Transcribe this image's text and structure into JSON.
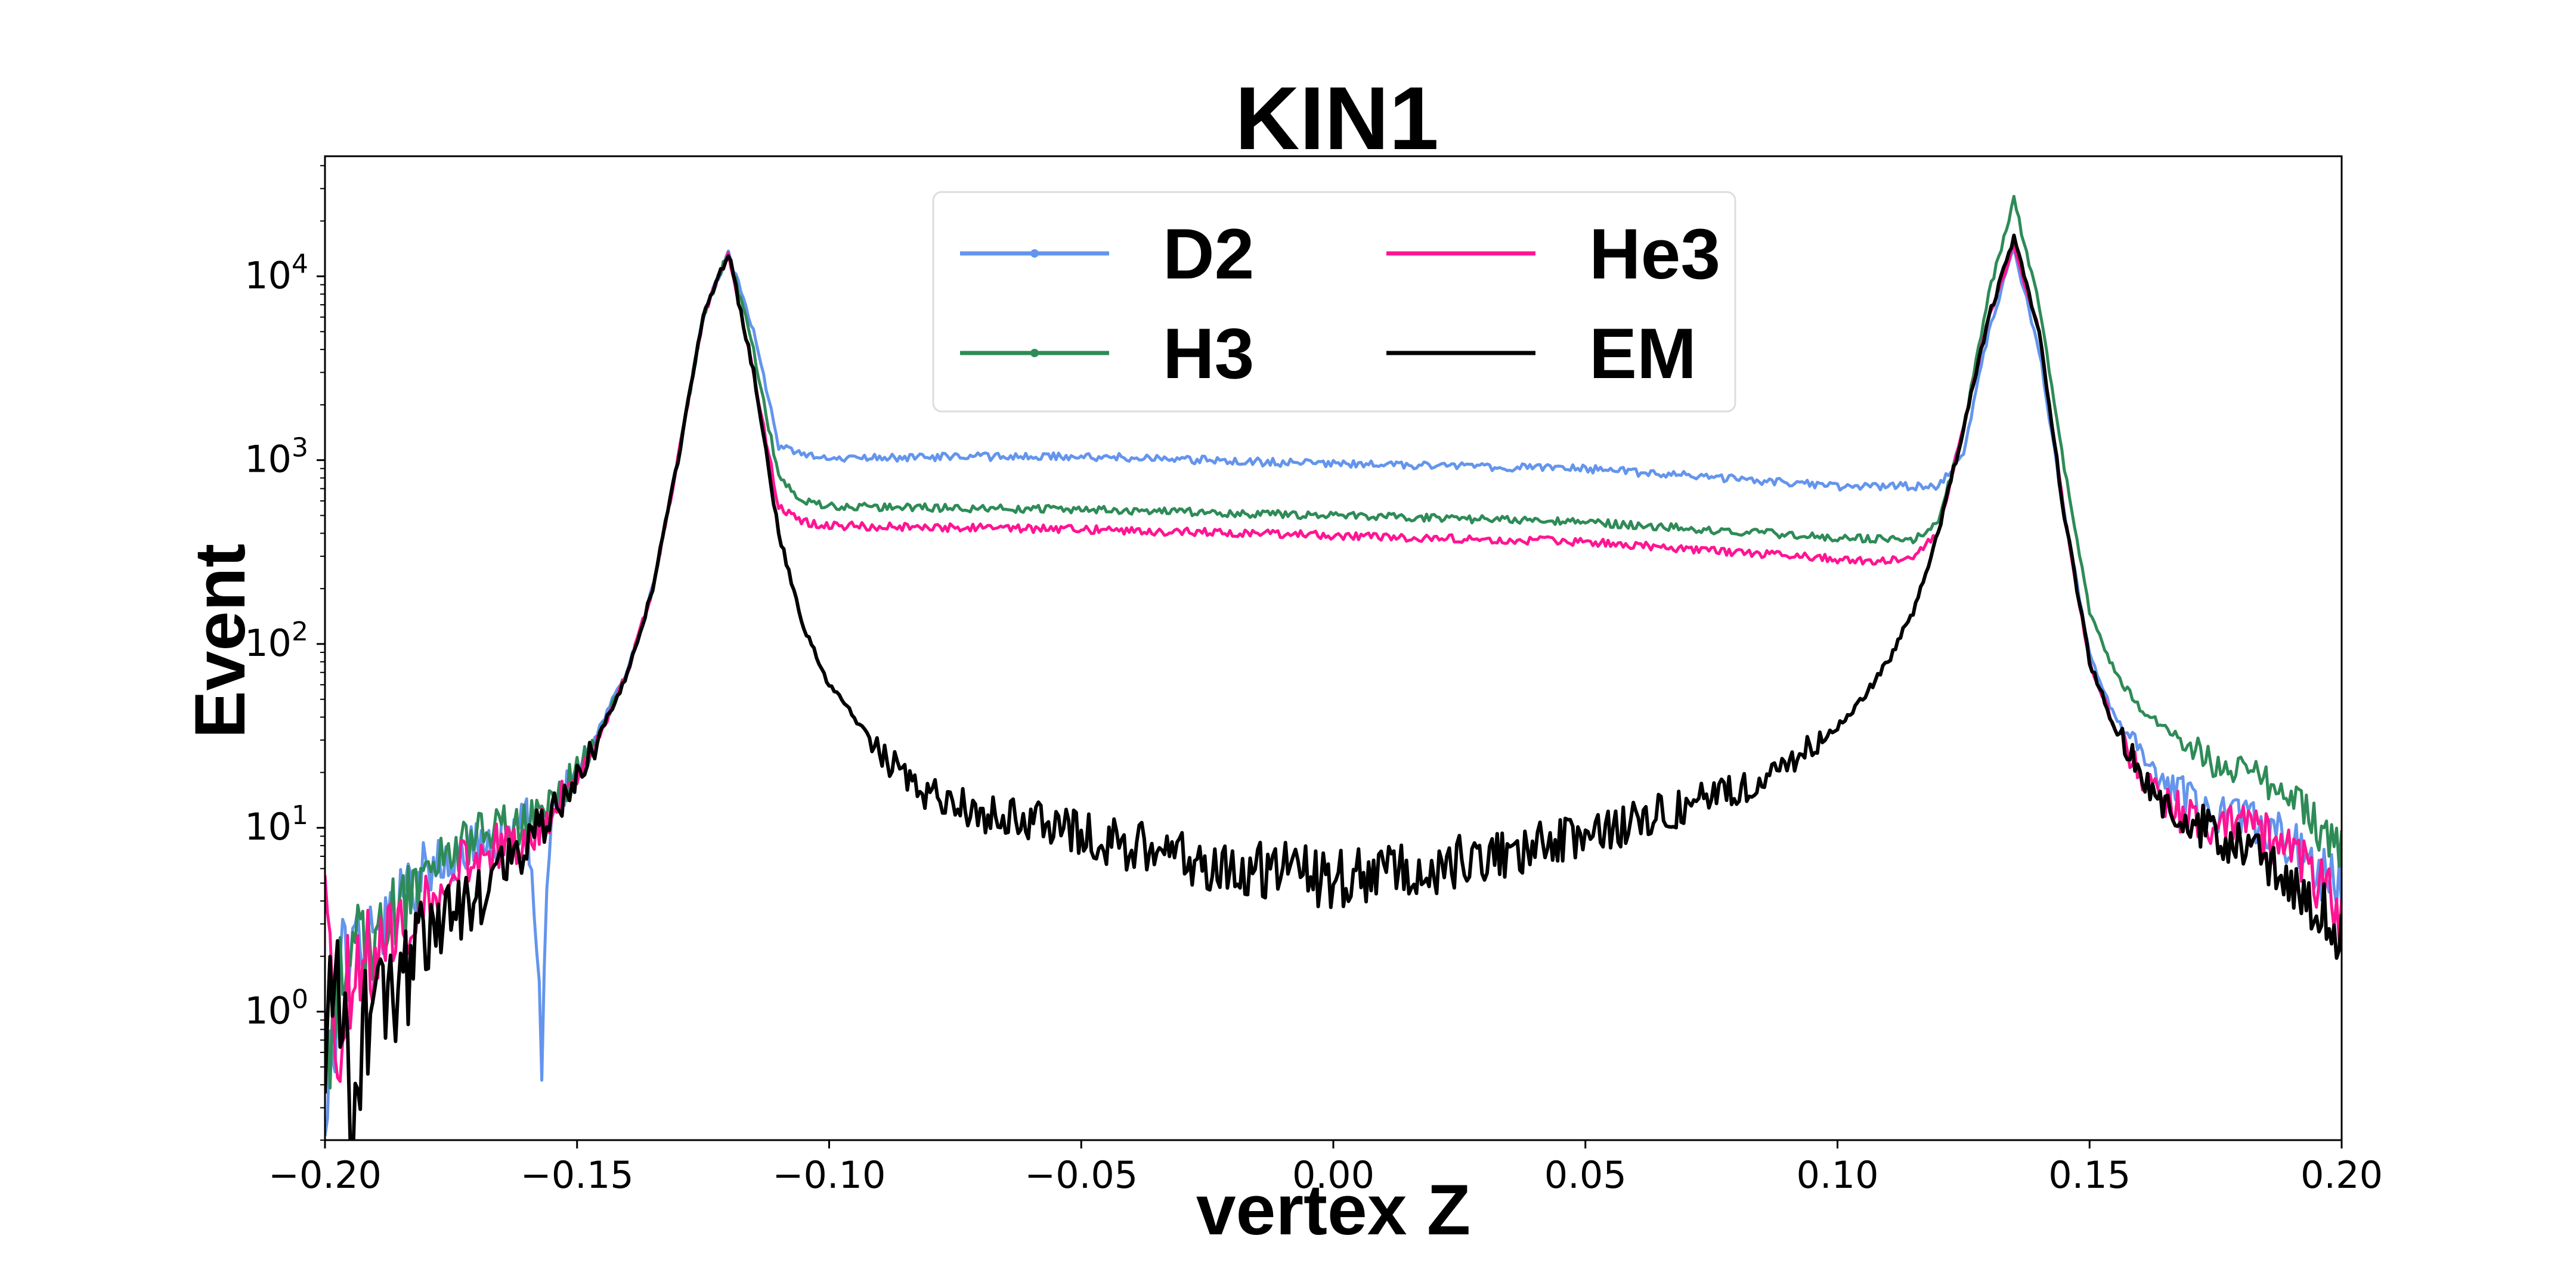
{
  "chart_data": {
    "type": "line",
    "title": "KIN1",
    "xlabel": "vertex Z",
    "ylabel": "Event",
    "xlim": [
      -0.2,
      0.2
    ],
    "ylim": [
      0.2,
      45000
    ],
    "yscale": "log",
    "grid": false,
    "legend": {
      "placement": "top-center",
      "columns": 2
    },
    "xticks": [
      -0.2,
      -0.15,
      -0.1,
      -0.05,
      0.0,
      0.05,
      0.1,
      0.15,
      0.2
    ],
    "xtick_labels": [
      "−0.20",
      "−0.15",
      "−0.10",
      "−0.05",
      "0.00",
      "0.05",
      "0.10",
      "0.15",
      "0.20"
    ],
    "yticks": [
      1,
      10,
      100,
      1000,
      10000
    ],
    "ytick_labels": [
      {
        "base": "10",
        "exp": "0"
      },
      {
        "base": "10",
        "exp": "1"
      },
      {
        "base": "10",
        "exp": "2"
      },
      {
        "base": "10",
        "exp": "3"
      },
      {
        "base": "10",
        "exp": "4"
      }
    ],
    "series": [
      {
        "name": "D2",
        "color": "#6495ed",
        "marker": "dot",
        "points": [
          [
            -0.2,
            0.5
          ],
          [
            -0.195,
            2.5
          ],
          [
            -0.19,
            2.8
          ],
          [
            -0.185,
            4
          ],
          [
            -0.18,
            6
          ],
          [
            -0.175,
            7
          ],
          [
            -0.17,
            8
          ],
          [
            -0.165,
            9
          ],
          [
            -0.16,
            11
          ],
          [
            -0.157,
            1.0
          ],
          [
            -0.155,
            13
          ],
          [
            -0.15,
            20
          ],
          [
            -0.145,
            38
          ],
          [
            -0.14,
            70
          ],
          [
            -0.135,
            200
          ],
          [
            -0.13,
            1000
          ],
          [
            -0.125,
            6000
          ],
          [
            -0.12,
            13500
          ],
          [
            -0.115,
            5000
          ],
          [
            -0.11,
            1200
          ],
          [
            -0.105,
            1050
          ],
          [
            -0.1,
            1030
          ],
          [
            -0.05,
            1050
          ],
          [
            0.0,
            950
          ],
          [
            0.05,
            900
          ],
          [
            0.1,
            720
          ],
          [
            0.12,
            720
          ],
          [
            0.125,
            1100
          ],
          [
            0.13,
            5000
          ],
          [
            0.135,
            14000
          ],
          [
            0.14,
            4000
          ],
          [
            0.145,
            500
          ],
          [
            0.15,
            90
          ],
          [
            0.155,
            40
          ],
          [
            0.16,
            25
          ],
          [
            0.165,
            18
          ],
          [
            0.17,
            14
          ],
          [
            0.175,
            12
          ],
          [
            0.18,
            11
          ],
          [
            0.185,
            10
          ],
          [
            0.19,
            8
          ],
          [
            0.195,
            6
          ],
          [
            0.2,
            5
          ]
        ]
      },
      {
        "name": "H3",
        "color": "#2e8b57",
        "marker": "dot",
        "points": [
          [
            -0.2,
            0.6
          ],
          [
            -0.195,
            2
          ],
          [
            -0.19,
            2.5
          ],
          [
            -0.185,
            4
          ],
          [
            -0.18,
            5
          ],
          [
            -0.175,
            7
          ],
          [
            -0.17,
            9
          ],
          [
            -0.165,
            10
          ],
          [
            -0.16,
            11
          ],
          [
            -0.155,
            14
          ],
          [
            -0.15,
            20
          ],
          [
            -0.145,
            35
          ],
          [
            -0.14,
            70
          ],
          [
            -0.135,
            200
          ],
          [
            -0.13,
            1000
          ],
          [
            -0.125,
            6000
          ],
          [
            -0.12,
            13500
          ],
          [
            -0.115,
            4000
          ],
          [
            -0.11,
            800
          ],
          [
            -0.105,
            600
          ],
          [
            -0.1,
            560
          ],
          [
            -0.05,
            540
          ],
          [
            0.0,
            500
          ],
          [
            0.05,
            460
          ],
          [
            0.1,
            380
          ],
          [
            0.115,
            370
          ],
          [
            0.12,
            450
          ],
          [
            0.125,
            1500
          ],
          [
            0.13,
            8000
          ],
          [
            0.135,
            26000
          ],
          [
            0.14,
            7000
          ],
          [
            0.145,
            900
          ],
          [
            0.15,
            150
          ],
          [
            0.155,
            70
          ],
          [
            0.16,
            45
          ],
          [
            0.165,
            35
          ],
          [
            0.17,
            28
          ],
          [
            0.175,
            22
          ],
          [
            0.18,
            20
          ],
          [
            0.185,
            18
          ],
          [
            0.19,
            15
          ],
          [
            0.195,
            10
          ],
          [
            0.2,
            8
          ]
        ]
      },
      {
        "name": "He3",
        "color": "#ff1493",
        "marker": "none",
        "points": [
          [
            -0.2,
            5
          ],
          [
            -0.198,
            0.3
          ],
          [
            -0.195,
            1.5
          ],
          [
            -0.19,
            2
          ],
          [
            -0.185,
            3
          ],
          [
            -0.18,
            4
          ],
          [
            -0.175,
            6
          ],
          [
            -0.17,
            7
          ],
          [
            -0.165,
            8
          ],
          [
            -0.16,
            9
          ],
          [
            -0.155,
            12
          ],
          [
            -0.15,
            18
          ],
          [
            -0.145,
            34
          ],
          [
            -0.14,
            70
          ],
          [
            -0.135,
            200
          ],
          [
            -0.13,
            1000
          ],
          [
            -0.125,
            6000
          ],
          [
            -0.12,
            13500
          ],
          [
            -0.115,
            3000
          ],
          [
            -0.11,
            550
          ],
          [
            -0.105,
            460
          ],
          [
            -0.1,
            440
          ],
          [
            -0.05,
            420
          ],
          [
            0.0,
            390
          ],
          [
            0.05,
            360
          ],
          [
            0.1,
            290
          ],
          [
            0.11,
            280
          ],
          [
            0.115,
            300
          ],
          [
            0.12,
            400
          ],
          [
            0.125,
            1500
          ],
          [
            0.13,
            6000
          ],
          [
            0.135,
            15000
          ],
          [
            0.14,
            5000
          ],
          [
            0.145,
            500
          ],
          [
            0.15,
            80
          ],
          [
            0.155,
            35
          ],
          [
            0.16,
            20
          ],
          [
            0.165,
            14
          ],
          [
            0.17,
            11
          ],
          [
            0.175,
            10
          ],
          [
            0.18,
            10
          ],
          [
            0.185,
            9
          ],
          [
            0.19,
            7
          ],
          [
            0.195,
            5
          ],
          [
            0.2,
            3
          ]
        ]
      },
      {
        "name": "EM",
        "color": "#000000",
        "marker": "none",
        "points": [
          [
            -0.2,
            0.4
          ],
          [
            -0.198,
            2
          ],
          [
            -0.195,
            0.3
          ],
          [
            -0.19,
            1.5
          ],
          [
            -0.185,
            1.2
          ],
          [
            -0.18,
            2.5
          ],
          [
            -0.175,
            3
          ],
          [
            -0.17,
            4
          ],
          [
            -0.165,
            6
          ],
          [
            -0.16,
            8
          ],
          [
            -0.155,
            12
          ],
          [
            -0.15,
            18
          ],
          [
            -0.145,
            34
          ],
          [
            -0.14,
            70
          ],
          [
            -0.135,
            200
          ],
          [
            -0.13,
            1000
          ],
          [
            -0.125,
            6000
          ],
          [
            -0.12,
            13500
          ],
          [
            -0.115,
            3000
          ],
          [
            -0.11,
            400
          ],
          [
            -0.105,
            120
          ],
          [
            -0.1,
            60
          ],
          [
            -0.095,
            40
          ],
          [
            -0.09,
            25
          ],
          [
            -0.085,
            20
          ],
          [
            -0.08,
            15
          ],
          [
            -0.075,
            14
          ],
          [
            -0.07,
            12
          ],
          [
            -0.06,
            11
          ],
          [
            -0.05,
            9
          ],
          [
            -0.04,
            8
          ],
          [
            -0.03,
            7
          ],
          [
            -0.02,
            6
          ],
          [
            -0.01,
            6
          ],
          [
            0.0,
            5
          ],
          [
            0.01,
            6
          ],
          [
            0.02,
            6
          ],
          [
            0.03,
            7
          ],
          [
            0.04,
            8
          ],
          [
            0.05,
            9
          ],
          [
            0.06,
            11
          ],
          [
            0.07,
            13
          ],
          [
            0.08,
            16
          ],
          [
            0.09,
            22
          ],
          [
            0.1,
            35
          ],
          [
            0.105,
            50
          ],
          [
            0.11,
            80
          ],
          [
            0.115,
            150
          ],
          [
            0.12,
            400
          ],
          [
            0.125,
            1500
          ],
          [
            0.13,
            6000
          ],
          [
            0.135,
            16000
          ],
          [
            0.14,
            5000
          ],
          [
            0.145,
            500
          ],
          [
            0.15,
            80
          ],
          [
            0.155,
            35
          ],
          [
            0.16,
            20
          ],
          [
            0.165,
            14
          ],
          [
            0.17,
            11
          ],
          [
            0.175,
            9
          ],
          [
            0.18,
            8
          ],
          [
            0.185,
            7
          ],
          [
            0.19,
            5
          ],
          [
            0.195,
            4
          ],
          [
            0.2,
            3
          ]
        ]
      }
    ]
  }
}
